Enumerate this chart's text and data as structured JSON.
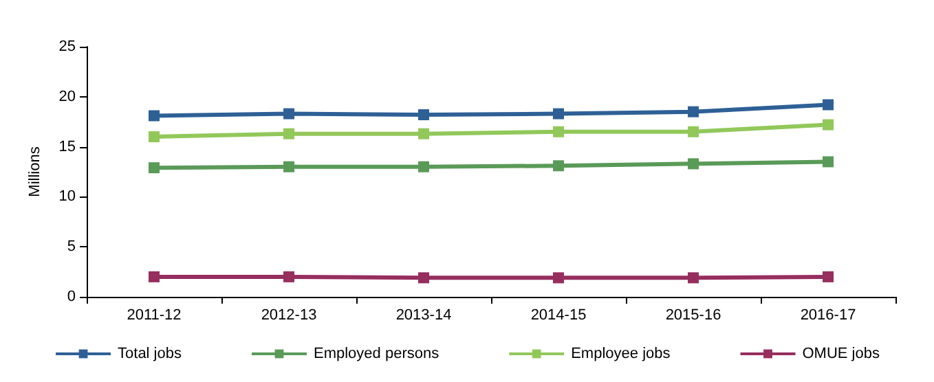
{
  "chart_data": {
    "type": "line",
    "ylabel": "Millions",
    "categories": [
      "2011-12",
      "2012-13",
      "2013-14",
      "2014-15",
      "2015-16",
      "2016-17"
    ],
    "series": [
      {
        "name": "Total jobs",
        "color": "#2e6096",
        "values": [
          18.1,
          18.3,
          18.2,
          18.3,
          18.5,
          19.2
        ]
      },
      {
        "name": "Employed persons",
        "color": "#5a9a58",
        "values": [
          12.9,
          13.0,
          13.0,
          13.1,
          13.3,
          13.5
        ]
      },
      {
        "name": "Employee jobs",
        "color": "#92c85a",
        "values": [
          16.0,
          16.3,
          16.3,
          16.5,
          16.5,
          17.2
        ]
      },
      {
        "name": "OMUE jobs",
        "color": "#962e5e",
        "values": [
          2.0,
          2.0,
          1.9,
          1.9,
          1.9,
          2.0
        ]
      }
    ],
    "ylim": [
      0,
      25
    ],
    "yticks": [
      0,
      5,
      10,
      15,
      20,
      25
    ],
    "grid": false,
    "legend": "bottom",
    "marker": "square",
    "line_style": "solid"
  }
}
